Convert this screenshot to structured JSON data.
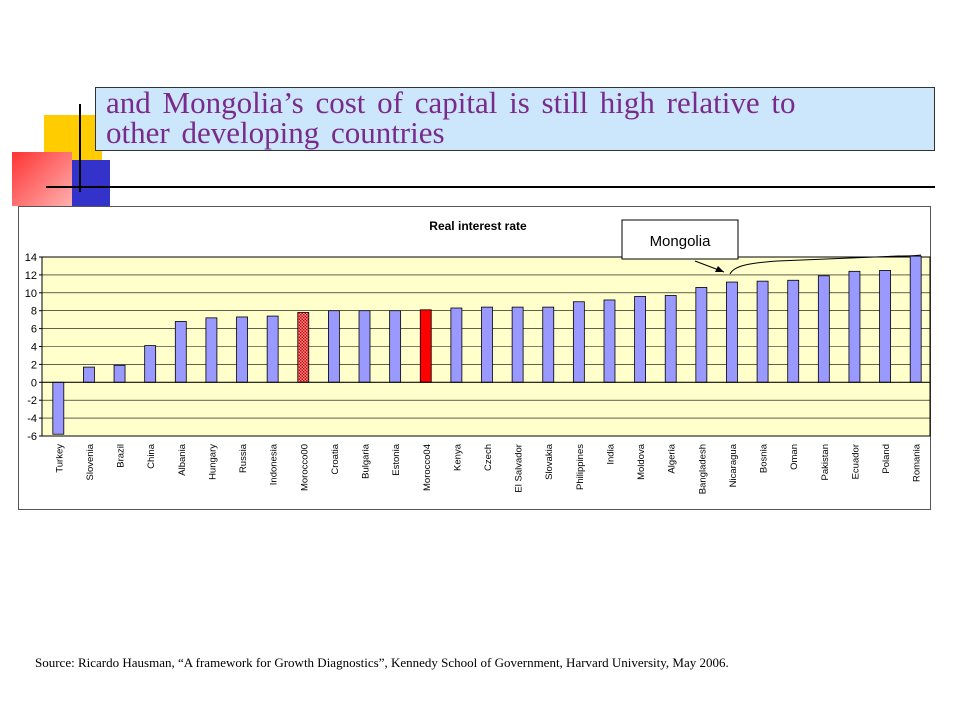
{
  "slide": {
    "title_line1": "and Mongolia’s cost of capital is still high relative to",
    "title_line2": "other developing countries",
    "source": "Source: Ricardo Hausman, “A framework for Growth Diagnostics”, Kennedy School of Government, Harvard University, May 2006."
  },
  "colors": {
    "bar": "#9999ff",
    "highlight": "#ff0000",
    "plot_bg": "#ffffcc",
    "title_bg": "#cce6fb",
    "title_text": "#7a2a8a"
  },
  "chart_data": {
    "type": "bar",
    "title": "Real interest rate",
    "ylim": [
      -6,
      14
    ],
    "yticks": [
      14,
      12,
      10,
      8,
      6,
      4,
      2,
      0,
      -2,
      -4,
      -6
    ],
    "grid": true,
    "categories": [
      "Turkey",
      "Slovenia",
      "Brazil",
      "China",
      "Albania",
      "Hungary",
      "Russia",
      "Indonesia",
      "Morocco00",
      "Croatia",
      "Bulgaria",
      "Estonia",
      "Morocco04",
      "Kenya",
      "Czech",
      "El Salvador",
      "Slovakia",
      "Philippines",
      "India",
      "Moldova",
      "Algeria",
      "Bangladesh",
      "Nicaragua",
      "Bosnia",
      "Oman",
      "Pakistan",
      "Ecuador",
      "Poland",
      "Romania"
    ],
    "values": [
      -5.8,
      1.7,
      1.9,
      4.1,
      6.8,
      7.2,
      7.3,
      7.4,
      7.8,
      8.0,
      8.0,
      8.0,
      8.1,
      8.3,
      8.4,
      8.4,
      8.4,
      9.0,
      9.2,
      9.6,
      9.7,
      10.6,
      11.2,
      11.3,
      11.4,
      11.9,
      12.4,
      12.5,
      14.1
    ],
    "highlighted": {
      "Morocco00": "hatched",
      "Morocco04": "solid"
    },
    "annotation": {
      "label": "Mongolia"
    }
  }
}
